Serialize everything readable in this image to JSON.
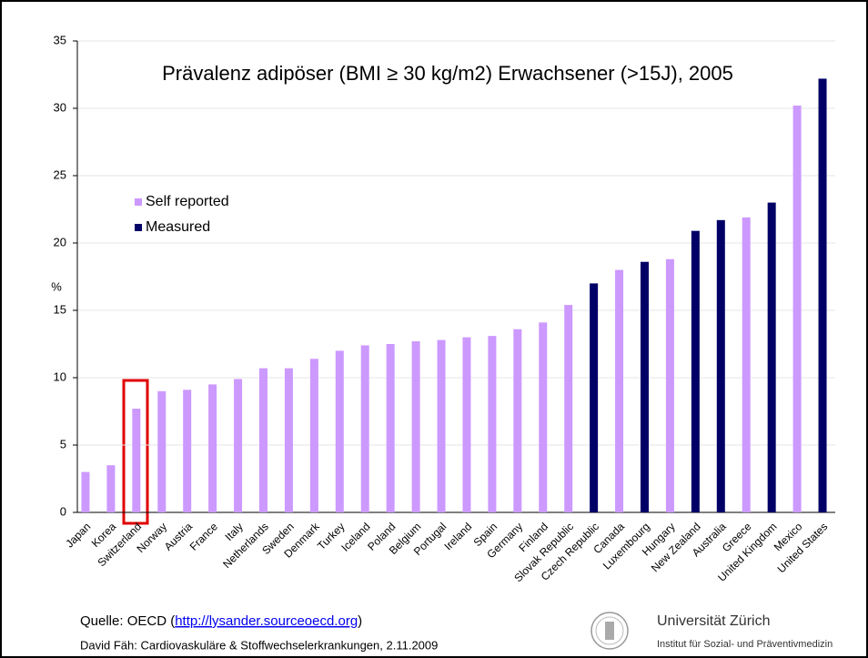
{
  "chart_data": {
    "type": "bar",
    "title": "Prävalenz adipöser (BMI ≥ 30 kg/m2) Erwachsener (>15J), 2005",
    "y_label": "%",
    "categories": [
      "Japan",
      "Korea",
      "Switzerland",
      "Norway",
      "Austria",
      "France",
      "Italy",
      "Netherlands",
      "Sweden",
      "Denmark",
      "Turkey",
      "Iceland",
      "Poland",
      "Belgium",
      "Portugal",
      "Ireland",
      "Spain",
      "Germany",
      "Finland",
      "Slovak Republic",
      "Czech Republic",
      "Canada",
      "Luxembourg",
      "Hungary",
      "New Zealand",
      "Australia",
      "Greece",
      "United Kingdom",
      "Mexico",
      "United States"
    ],
    "series": [
      {
        "name": "Self reported",
        "color": "#cc99ff",
        "values": [
          3.0,
          3.5,
          7.7,
          9.0,
          9.1,
          9.5,
          9.9,
          10.7,
          10.7,
          11.4,
          12.0,
          12.4,
          12.5,
          12.7,
          12.8,
          13.0,
          13.1,
          13.6,
          14.1,
          15.4,
          null,
          18.0,
          null,
          18.8,
          null,
          null,
          21.9,
          null,
          30.2,
          null
        ]
      },
      {
        "name": "Measured",
        "color": "#000066",
        "values": [
          null,
          null,
          null,
          null,
          null,
          null,
          null,
          null,
          null,
          null,
          null,
          null,
          null,
          null,
          null,
          null,
          null,
          null,
          null,
          null,
          17.0,
          null,
          18.6,
          null,
          20.9,
          21.7,
          null,
          23.0,
          null,
          32.2
        ]
      }
    ],
    "ylim": [
      0,
      35
    ],
    "yticks": [
      0,
      5,
      10,
      15,
      20,
      25,
      30,
      35
    ],
    "grid": true
  },
  "footer": {
    "source_prefix": "Quelle: OECD (",
    "source_link": "http://lysander.sourceoecd.org",
    "source_suffix": " )",
    "author": "David Fäh: Cardiovaskuläre & Stoffwechselerkrankungen, 2.11.2009",
    "university": "Universität Zürich",
    "institute": "Institut für Sozial- und Präventivmedizin"
  }
}
